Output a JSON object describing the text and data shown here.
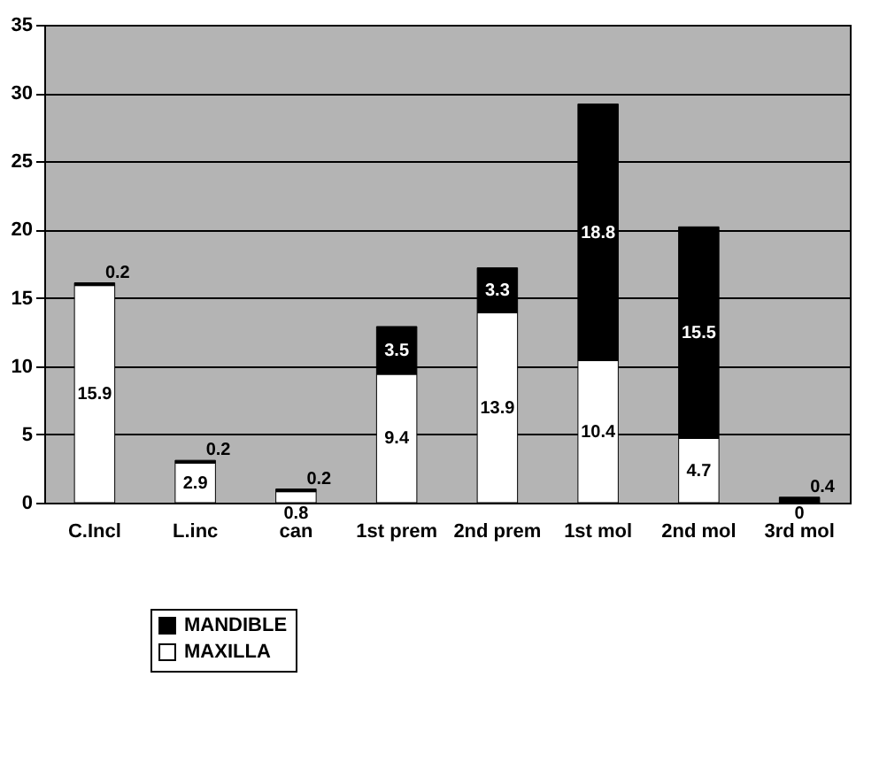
{
  "chart_data": {
    "type": "bar",
    "stacked": true,
    "categories": [
      "C.Incl",
      "L.inc",
      "can",
      "1st prem",
      "2nd prem",
      "1st mol",
      "2nd mol",
      "3rd mol"
    ],
    "series": [
      {
        "name": "MAXILLA",
        "color": "#ffffff",
        "values": [
          15.9,
          2.9,
          0.8,
          9.4,
          13.9,
          10.4,
          4.7,
          0
        ]
      },
      {
        "name": "MANDIBLE",
        "color": "#000000",
        "values": [
          0.2,
          0.2,
          0.2,
          3.5,
          3.3,
          18.8,
          15.5,
          0.4
        ]
      }
    ],
    "ylim": [
      0,
      35
    ],
    "yticks": [
      0,
      5,
      10,
      15,
      20,
      25,
      30,
      35
    ],
    "grid": "y",
    "legend": "bottom left",
    "data_labels": true
  }
}
